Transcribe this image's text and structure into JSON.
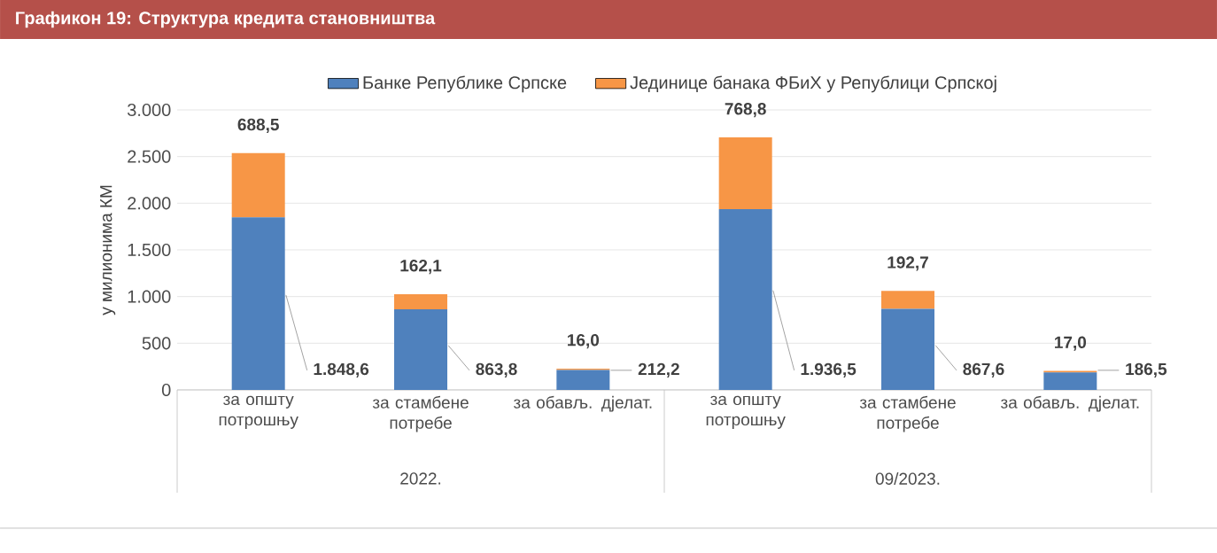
{
  "chart_data": {
    "type": "bar",
    "stacked": true,
    "title": "Графикон 19: Структура кредита становништва",
    "ylabel": "у милионима КМ",
    "categories": [
      "за општу потрошњу",
      "за стамбене потребе",
      "за обављ. дјелат.",
      "за општу потрошњу",
      "за стамбене потребе",
      "за обављ. дјелат."
    ],
    "annotations": [
      "2022.",
      "09/2023."
    ],
    "series": [
      {
        "name": "Банке Републике Српске",
        "color": "#4f81bd",
        "values": [
          1848.6,
          863.8,
          212.2,
          1936.5,
          867.6,
          186.5
        ],
        "value_labels": [
          "1.848,6",
          "863,8",
          "212,2",
          "1.936,5",
          "867,6",
          "186,5"
        ]
      },
      {
        "name": "Јединице банака ФБиХ у Републици Српскоj",
        "color": "#f79646",
        "values": [
          688.5,
          162.1,
          16.0,
          768.8,
          192.7,
          17.0
        ],
        "value_labels": [
          "688,5",
          "162,1",
          "16,0",
          "768,8",
          "192,7",
          "17,0"
        ]
      }
    ],
    "ylim": [
      0,
      3000
    ],
    "yticks": [
      {
        "value": 0,
        "label": "0"
      },
      {
        "value": 500,
        "label": "500"
      },
      {
        "value": 1000,
        "label": "1.000"
      },
      {
        "value": 1500,
        "label": "1.500"
      },
      {
        "value": 2000,
        "label": "2.000"
      },
      {
        "value": 2500,
        "label": "2.500"
      },
      {
        "value": 3000,
        "label": "3.000"
      }
    ],
    "grid": "y",
    "legend": "top"
  }
}
